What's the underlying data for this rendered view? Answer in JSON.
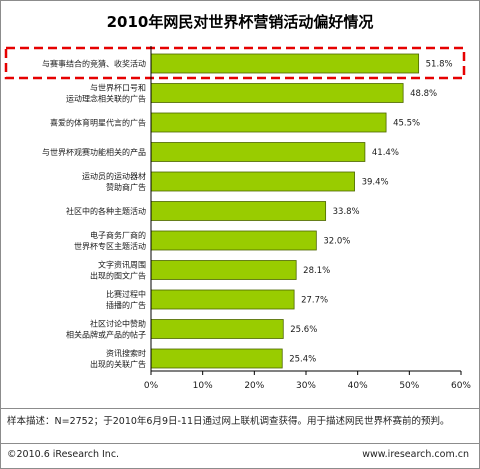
{
  "chart_data": {
    "type": "bar",
    "orientation": "horizontal",
    "title": "2010年网民对世界杯营销活动偏好情况",
    "categories": [
      [
        "与赛事结合的竞猜、收奖活动"
      ],
      [
        "与世界杯口号和",
        "运动理念相关联的广告"
      ],
      [
        "喜爱的体育明星代言的广告"
      ],
      [
        "与世界杯观赛功能相关的产品"
      ],
      [
        "运动员的运动器材",
        "赞助商广告"
      ],
      [
        "社区中的各种主题活动"
      ],
      [
        "电子商务厂商的",
        "世界杯专区主题活动"
      ],
      [
        "文字资讯周围",
        "出现的图文广告"
      ],
      [
        "比赛过程中",
        "插播的广告"
      ],
      [
        "社区讨论中赞助",
        "相关品牌或产品的帖子"
      ],
      [
        "资讯搜索时",
        "出现的关联广告"
      ]
    ],
    "values": [
      51.8,
      48.8,
      45.5,
      41.4,
      39.4,
      33.8,
      32.0,
      28.1,
      27.7,
      25.6,
      25.4
    ],
    "value_labels": [
      "51.8%",
      "48.8%",
      "45.5%",
      "41.4%",
      "39.4%",
      "33.8%",
      "32.0%",
      "28.1%",
      "27.7%",
      "25.6%",
      "25.4%"
    ],
    "xlim": [
      0,
      60
    ],
    "xticks": [
      "0%",
      "10%",
      "20%",
      "30%",
      "40%",
      "50%",
      "60%"
    ],
    "grid": false,
    "highlight_index": 0,
    "colors": {
      "bar_fill": "#99cc00",
      "bar_stroke": "#4d6600",
      "highlight_box": "#e60000",
      "axis": "#000000"
    }
  },
  "note": "样本描述：N=2752；于2010年6月9日-11日通过网上联机调查获得。用于描述网民世界杯赛前的预判。",
  "footer": {
    "copyright": "©2010.6 iResearch Inc.",
    "url": "www.iresearch.com.cn"
  }
}
